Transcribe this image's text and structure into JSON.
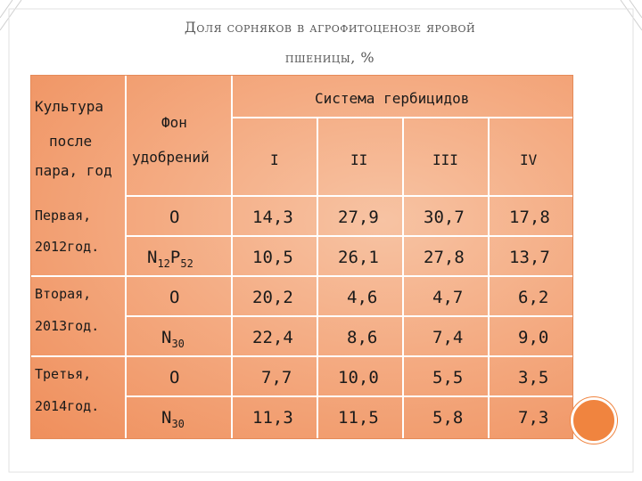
{
  "title": {
    "line1": "Доля сорняков в агрофитоценозе яровой",
    "line2": "пшеницы, %"
  },
  "table": {
    "header": {
      "culture": [
        "Культура",
        "после",
        "пара, год"
      ],
      "fon": [
        "Фон",
        "удобрений"
      ],
      "system": "Система гербицидов",
      "systems": [
        "I",
        "II",
        "III",
        "IV"
      ]
    },
    "groups": [
      {
        "label": [
          "Первая,",
          "2012год."
        ]
      },
      {
        "label": [
          "Вторая,",
          "2013год."
        ]
      },
      {
        "label": [
          "Третья,",
          "2014год."
        ]
      }
    ],
    "rows": [
      {
        "fon": "О",
        "fon_sub": "",
        "values": [
          "14,3",
          "27,9",
          "30,7",
          "17,8"
        ]
      },
      {
        "fon": "N",
        "fon_sub": "12",
        "fon2": "P",
        "fon2_sub": "52",
        "values": [
          "10,5",
          "26,1",
          "27,8",
          "13,7"
        ]
      },
      {
        "fon": "О",
        "fon_sub": "",
        "values": [
          "20,2",
          "4,6",
          "4,7",
          "6,2"
        ]
      },
      {
        "fon": "N",
        "fon_sub": "30",
        "values": [
          "22,4",
          "8,6",
          "7,4",
          "9,0"
        ]
      },
      {
        "fon": "О",
        "fon_sub": "",
        "values": [
          "7,7",
          "10,0",
          "5,5",
          "3,5"
        ]
      },
      {
        "fon": "N",
        "fon_sub": "30",
        "values": [
          "11,3",
          "11,5",
          "5,8",
          "7,3"
        ]
      }
    ]
  },
  "colors": {
    "table_fill": "#f4ab82",
    "circle": "#f0843f",
    "title": "#555555"
  }
}
